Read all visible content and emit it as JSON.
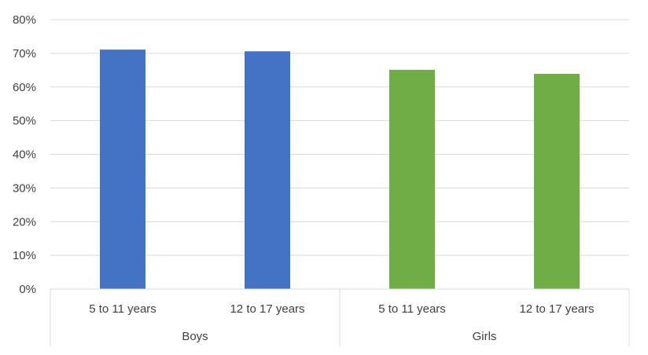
{
  "chart_data": {
    "type": "bar",
    "title": "",
    "xlabel": "",
    "ylabel": "",
    "ylim": [
      0,
      0.8
    ],
    "yticks": [
      "0%",
      "10%",
      "20%",
      "30%",
      "40%",
      "50%",
      "60%",
      "70%",
      "80%"
    ],
    "grid": true,
    "legend": "none",
    "groups": [
      {
        "label": "Boys",
        "color": "#4472C4",
        "categories": [
          "5 to 11 years",
          "12 to 17 years"
        ],
        "values": [
          0.711,
          0.706
        ]
      },
      {
        "label": "Girls",
        "color": "#70AD47",
        "categories": [
          "5 to 11 years",
          "12 to 17 years"
        ],
        "values": [
          0.651,
          0.639
        ]
      }
    ]
  }
}
